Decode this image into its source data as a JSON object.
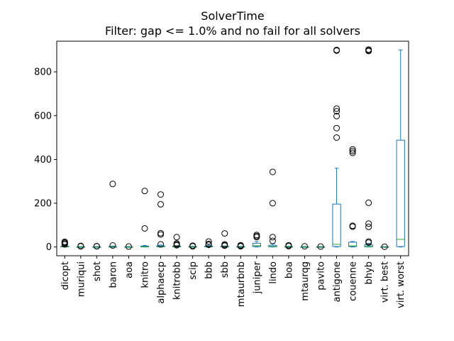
{
  "chart_data": {
    "type": "box",
    "title": "SolverTime",
    "subtitle": "Filter: gap <= 1.0% and no fail for all solvers",
    "xlabel": "",
    "ylabel": "",
    "ylim": [
      -40,
      940
    ],
    "yticks": [
      0,
      200,
      400,
      600,
      800
    ],
    "grid": false,
    "colors": {
      "box": "#1f77b4",
      "median": "#2ca02c",
      "flier": "#000000"
    },
    "categories": [
      "dicopt",
      "muriqui",
      "shot",
      "baron",
      "aoa",
      "knitro",
      "alphaecp",
      "knitrobb",
      "scip",
      "bbb",
      "sbb",
      "mtaurbnb",
      "juniper",
      "lindo",
      "boa",
      "mtaurqg",
      "pavito",
      "antigone",
      "couenne",
      "bhyb",
      "virt. best",
      "virt. worst"
    ],
    "boxes": [
      {
        "q1": 0.5,
        "median": 1.5,
        "q3": 3.5,
        "whislo": 0,
        "whishi": 8,
        "fliers": [
          12,
          16,
          20,
          24
        ]
      },
      {
        "q1": 0.2,
        "median": 0.5,
        "q3": 1,
        "whislo": 0,
        "whishi": 2,
        "fliers": [
          3,
          5
        ]
      },
      {
        "q1": 0.2,
        "median": 0.5,
        "q3": 1,
        "whislo": 0,
        "whishi": 2,
        "fliers": [
          3,
          4
        ]
      },
      {
        "q1": 0.5,
        "median": 1,
        "q3": 2,
        "whislo": 0,
        "whishi": 4,
        "fliers": [
          7,
          288
        ]
      },
      {
        "q1": 0.2,
        "median": 0.5,
        "q3": 1,
        "whislo": 0,
        "whishi": 2,
        "fliers": [
          2
        ]
      },
      {
        "q1": 0.5,
        "median": 1.5,
        "q3": 4,
        "whislo": 0,
        "whishi": 7,
        "fliers": [
          85,
          256
        ]
      },
      {
        "q1": 1,
        "median": 2,
        "q3": 5,
        "whislo": 0,
        "whishi": 9,
        "fliers": [
          12,
          57,
          63,
          195,
          240
        ]
      },
      {
        "q1": 0.5,
        "median": 1.5,
        "q3": 4,
        "whislo": 0,
        "whishi": 6,
        "fliers": [
          8,
          12,
          16,
          45
        ]
      },
      {
        "q1": 0.3,
        "median": 0.8,
        "q3": 2,
        "whislo": 0,
        "whishi": 3,
        "fliers": [
          3,
          6
        ]
      },
      {
        "q1": 0.5,
        "median": 1.5,
        "q3": 4,
        "whislo": 0,
        "whishi": 8,
        "fliers": [
          10,
          14,
          25
        ]
      },
      {
        "q1": 0.5,
        "median": 1.5,
        "q3": 3,
        "whislo": 0,
        "whishi": 5,
        "fliers": [
          6,
          8,
          12,
          62
        ]
      },
      {
        "q1": 0.3,
        "median": 0.8,
        "q3": 2,
        "whislo": 0,
        "whishi": 3,
        "fliers": [
          3,
          6,
          8
        ]
      },
      {
        "q1": 2,
        "median": 6,
        "q3": 17,
        "whislo": 0,
        "whishi": 25,
        "fliers": [
          45,
          50,
          55
        ]
      },
      {
        "q1": 1,
        "median": 3,
        "q3": 8,
        "whislo": 0,
        "whishi": 15,
        "fliers": [
          28,
          45,
          200,
          343
        ]
      },
      {
        "q1": 0.3,
        "median": 0.8,
        "q3": 2,
        "whislo": 0,
        "whishi": 3,
        "fliers": [
          4,
          8
        ]
      },
      {
        "q1": 0.2,
        "median": 0.5,
        "q3": 1,
        "whislo": 0,
        "whishi": 2,
        "fliers": [
          3
        ]
      },
      {
        "q1": 0.2,
        "median": 0.5,
        "q3": 1,
        "whislo": 0,
        "whishi": 2,
        "fliers": [
          2
        ]
      },
      {
        "q1": 2,
        "median": 12,
        "q3": 196,
        "whislo": 0,
        "whishi": 360,
        "fliers": [
          500,
          543,
          598,
          620,
          632,
          897,
          900
        ]
      },
      {
        "q1": 2,
        "median": 5,
        "q3": 22,
        "whislo": 0,
        "whishi": 25,
        "fliers": [
          93,
          97,
          430,
          438,
          446
        ]
      },
      {
        "q1": 1,
        "median": 3,
        "q3": 10,
        "whislo": 0,
        "whishi": 16,
        "fliers": [
          20,
          25,
          92,
          107,
          202,
          895,
          898,
          902
        ]
      },
      {
        "q1": 0.2,
        "median": 0.5,
        "q3": 1,
        "whislo": 0,
        "whishi": 1.5,
        "fliers": [
          1
        ]
      },
      {
        "q1": 2,
        "median": 35,
        "q3": 488,
        "whislo": 0,
        "whishi": 900,
        "fliers": []
      }
    ]
  }
}
